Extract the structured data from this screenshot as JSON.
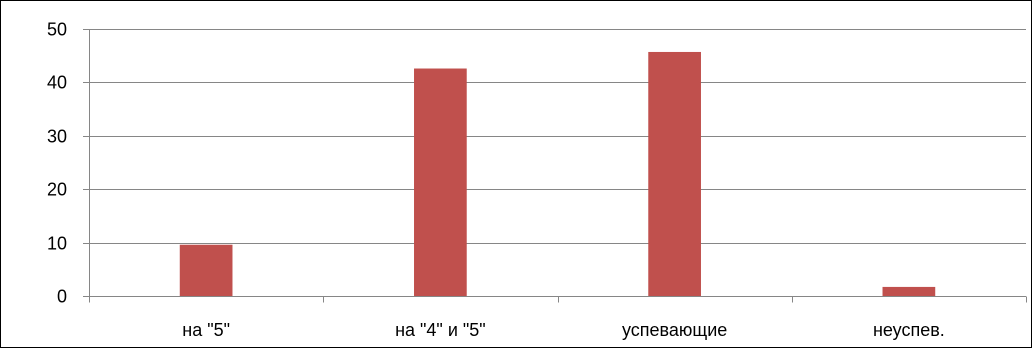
{
  "chart_data": {
    "type": "bar",
    "categories": [
      "на \"5\"",
      "на \"4\" и \"5\"",
      "успевающие",
      "неуспев."
    ],
    "values": [
      9.6,
      42.6,
      45.7,
      1.7
    ],
    "ylim": [
      0,
      50
    ],
    "yticks": [
      0,
      10,
      20,
      30,
      40,
      50
    ],
    "grid": true,
    "legend": "none",
    "bar_color": "#c0504d",
    "grid_color": "#868686",
    "axis_color": "#868686"
  }
}
